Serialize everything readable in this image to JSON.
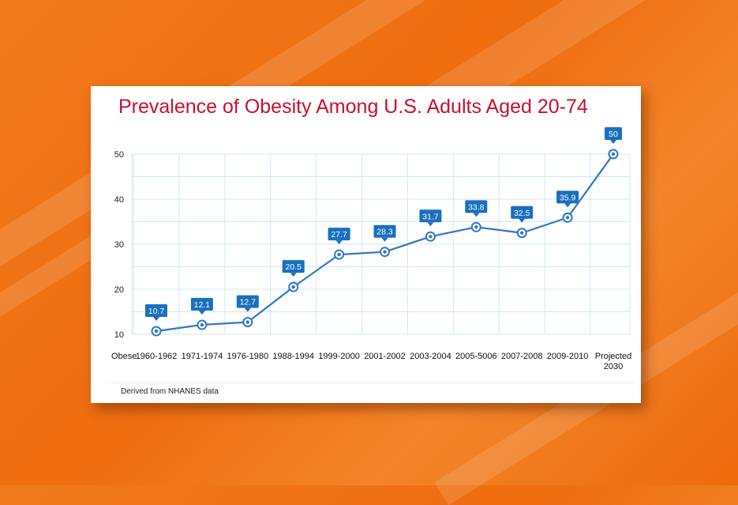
{
  "chart_data": {
    "type": "line",
    "title": "Prevalence of Obesity Among U.S. Adults Aged 20-74",
    "row_label": "Obese",
    "categories": [
      "1960-1962",
      "1971-1974",
      "1976-1980",
      "1988-1994",
      "1999-2000",
      "2001-2002",
      "2003-2004",
      "2005-5006",
      "2007-2008",
      "2009-2010",
      "Projected 2030"
    ],
    "series": [
      {
        "values": [
          10.7,
          12.1,
          12.7,
          20.5,
          27.7,
          28.3,
          31.7,
          33.8,
          32.5,
          35.9,
          50
        ]
      }
    ],
    "point_labels": [
      "10.7",
      "12.1",
      "12.7",
      "20.5",
      "27.7",
      "28.3",
      "31.7",
      "33.8",
      "32.5",
      "35.9",
      "50"
    ],
    "yticks": [
      10,
      20,
      30,
      40,
      50
    ],
    "ylim": [
      10,
      50
    ],
    "grid": true,
    "note": "Derived from NHANES data",
    "colors": {
      "line": "#2f78c4",
      "label_bg": "#1a6fc0",
      "title": "#c8102e",
      "grid": "#d2e8f2"
    }
  }
}
